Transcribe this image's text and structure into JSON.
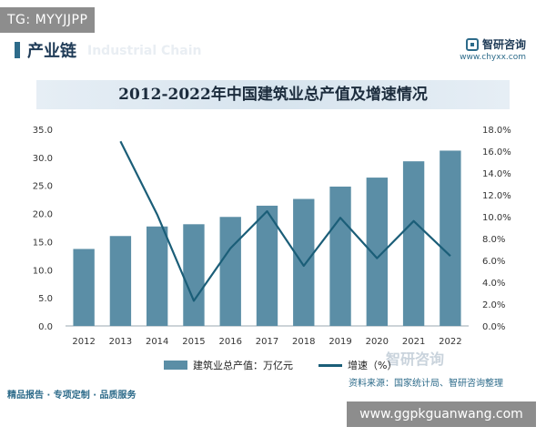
{
  "watermark_top": "TG: MYYJJPP",
  "section_title": "产业链",
  "section_watermark": "Industrial Chain",
  "brand": {
    "name": "智研咨询",
    "url": "www.chyxx.com"
  },
  "brand_watermark": "智研咨询",
  "title": "2012-2022年中国建筑业总产值及增速情况",
  "source": "资料来源：国家统计局、智研咨询整理",
  "footer": "精品报告 · 专项定制 · 品质服务",
  "watermark_bottom": "www.ggpkguanwang.com",
  "colors": {
    "bar": "#5b8ea6",
    "line": "#1b5e78",
    "title_band": "#dde8f0"
  },
  "chart_data": {
    "type": "bar",
    "title": "2012-2022年中国建筑业总产值及增速情况",
    "categories": [
      "2012",
      "2013",
      "2014",
      "2015",
      "2016",
      "2017",
      "2018",
      "2019",
      "2020",
      "2021",
      "2022"
    ],
    "series": [
      {
        "name": "建筑业总产值：万亿元",
        "type": "bar",
        "axis": "left",
        "values": [
          13.7,
          16.0,
          17.7,
          18.1,
          19.4,
          21.4,
          22.6,
          24.8,
          26.4,
          29.3,
          31.2
        ]
      },
      {
        "name": "增速（%）",
        "type": "line",
        "axis": "right",
        "values": [
          null,
          16.9,
          10.2,
          2.3,
          7.1,
          10.5,
          5.5,
          9.9,
          6.2,
          9.6,
          6.4
        ]
      }
    ],
    "y_left": {
      "min": 0,
      "max": 35,
      "ticks": [
        "0.0",
        "5.0",
        "10.0",
        "15.0",
        "20.0",
        "25.0",
        "30.0",
        "35.0"
      ]
    },
    "y_right": {
      "min": 0,
      "max": 18,
      "ticks": [
        "0.0%",
        "2.0%",
        "4.0%",
        "6.0%",
        "8.0%",
        "10.0%",
        "12.0%",
        "14.0%",
        "16.0%",
        "18.0%"
      ]
    },
    "legend_position": "bottom",
    "grid": false
  }
}
